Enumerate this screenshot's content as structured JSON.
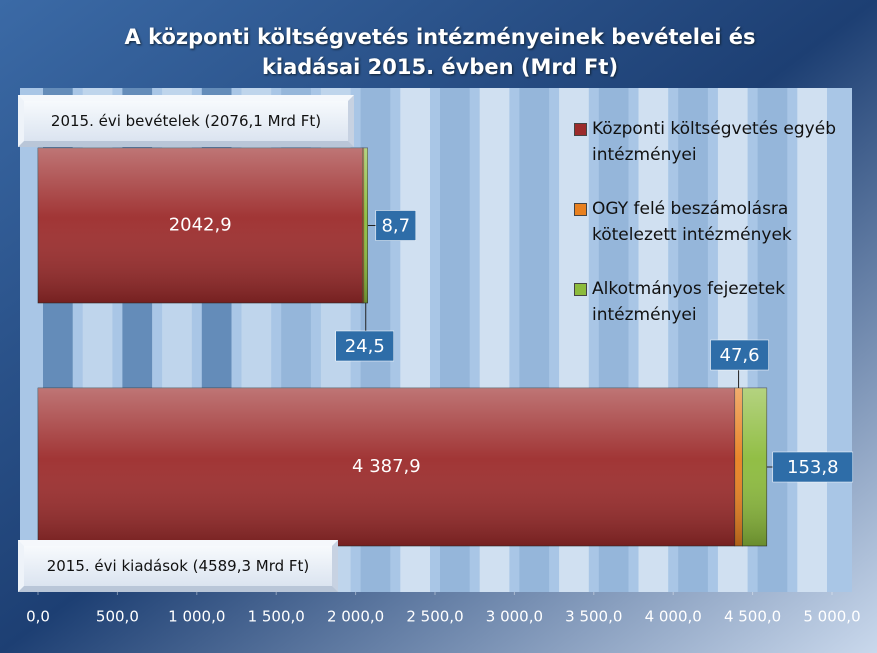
{
  "chart_data": {
    "type": "stacked_barh",
    "title": "A központi költségvetés intézményeinek bevételei és kiadásai 2015. évben (Mrd Ft)",
    "categories": [
      "2015. évi bevételek (2076,1 Mrd Ft)",
      "2015. évi  kiadások (4589,3 Mrd Ft)"
    ],
    "series": [
      {
        "name": "Központi költségvetés egyéb intézményei",
        "color": "#9c2b2b",
        "values": [
          2042.9,
          4387.9
        ],
        "value_labels": [
          "2042,9",
          "4 387,9"
        ]
      },
      {
        "name": "OGY felé beszámolásra kötelezett intézmények",
        "color": "#e8801f",
        "values": [
          8.7,
          47.6
        ],
        "value_labels": [
          "8,7",
          "47,6"
        ]
      },
      {
        "name": "Alkotmányos fejezetek intézményei",
        "color": "#8cbb3c",
        "values": [
          24.5,
          153.8
        ],
        "value_labels": [
          "24,5",
          "153,8"
        ]
      }
    ],
    "xlim": [
      0,
      5000
    ],
    "xticks": [
      {
        "value": 0,
        "label": "0,0"
      },
      {
        "value": 500,
        "label": "500,0"
      },
      {
        "value": 1000,
        "label": "1 000,0"
      },
      {
        "value": 1500,
        "label": "1 500,0"
      },
      {
        "value": 2000,
        "label": "2 000,0"
      },
      {
        "value": 2500,
        "label": "2 500,0"
      },
      {
        "value": 3000,
        "label": "3 000,0"
      },
      {
        "value": 3500,
        "label": "3 500,0"
      },
      {
        "value": 4000,
        "label": "4 000,0"
      },
      {
        "value": 4500,
        "label": "4 500,0"
      },
      {
        "value": 5000,
        "label": "5 000,0"
      }
    ],
    "legend": "top-right"
  }
}
